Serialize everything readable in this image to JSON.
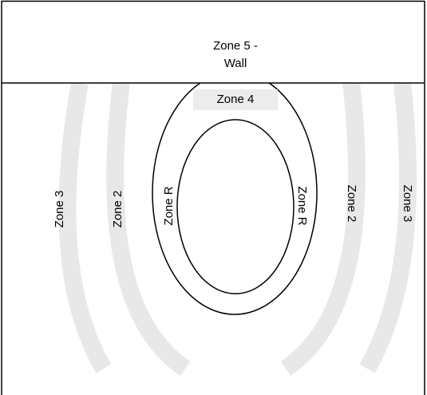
{
  "wall": {
    "line1": "Zone 5 -",
    "line2": "Wall"
  },
  "zone4": "Zone 4",
  "left": {
    "zone3": "Zone 3",
    "zone2": "Zone 2",
    "zoneR": "Zone R"
  },
  "right": {
    "zoneR": "Zone R",
    "zone2": "Zone 2",
    "zone3": "Zone 3"
  }
}
